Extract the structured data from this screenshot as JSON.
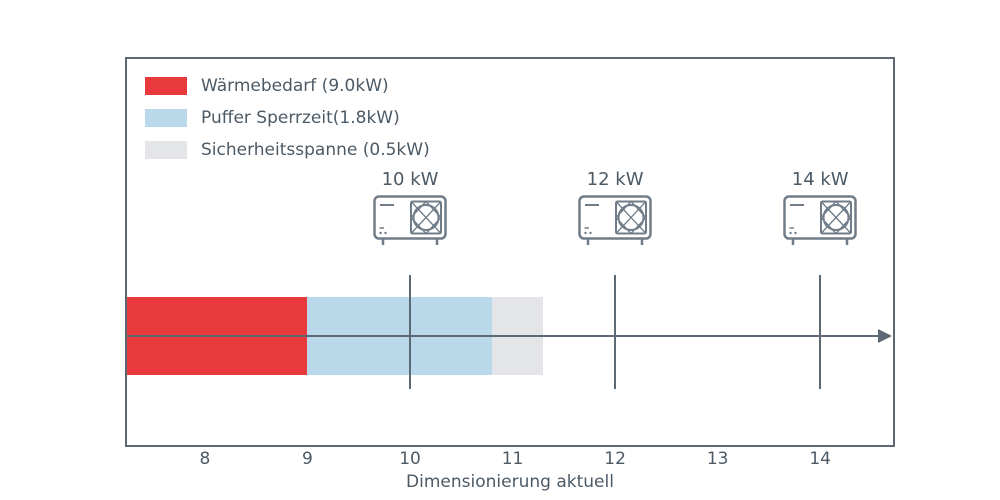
{
  "colors": {
    "bar_red": "#e8393d",
    "bar_blue": "#b9d9eb",
    "bar_gray": "#e3e5e9",
    "frame": "#5c6873",
    "text": "#4c5a66",
    "icon": "#707d89"
  },
  "chart_data": {
    "type": "bar",
    "orientation": "horizontal-stacked",
    "title": "",
    "xlabel": "Dimensionierung aktuell",
    "ylabel": "",
    "xlim": [
      7.24,
      14.71
    ],
    "xticks": [
      8,
      9,
      10,
      11,
      12,
      13,
      14
    ],
    "grid": false,
    "legend_position": "upper-left",
    "bar": {
      "segments": [
        {
          "name": "Wärmebedarf",
          "value_kw": 9.0,
          "from": 7.24,
          "to": 9.0,
          "color_key": "bar_red"
        },
        {
          "name": "Puffer Sperrzeit",
          "value_kw": 1.8,
          "from": 9.0,
          "to": 10.8,
          "color_key": "bar_blue"
        },
        {
          "name": "Sicherheitsspanne",
          "value_kw": 0.5,
          "from": 10.8,
          "to": 11.3,
          "color_key": "bar_gray"
        }
      ]
    },
    "markers": [
      {
        "label": "10 kW",
        "x": 10
      },
      {
        "label": "12 kW",
        "x": 12
      },
      {
        "label": "14 kW",
        "x": 14
      }
    ],
    "legend": [
      {
        "label": "Wärmebedarf (9.0kW)",
        "color_key": "bar_red"
      },
      {
        "label": "Puffer Sperrzeit(1.8kW)",
        "color_key": "bar_blue"
      },
      {
        "label": "Sicherheitsspanne (0.5kW)",
        "color_key": "bar_gray"
      }
    ]
  }
}
